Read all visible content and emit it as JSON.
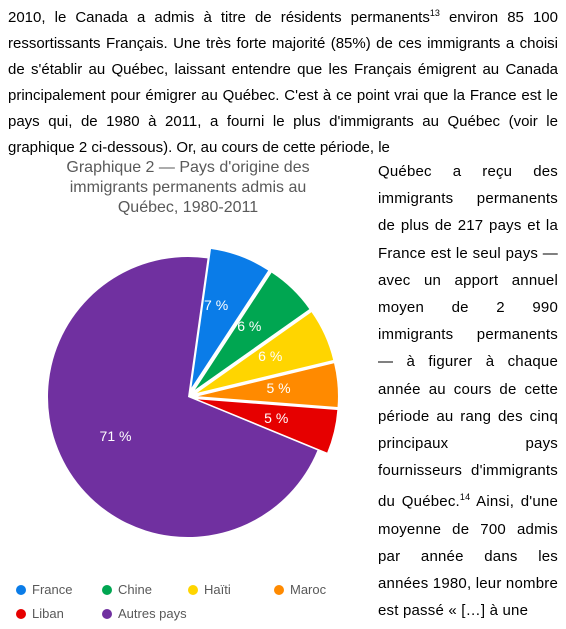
{
  "top_paragraph": {
    "l1": "2010, le Canada a admis à titre de résidents permanents",
    "fn": "13",
    "l1b": " environ 85 100",
    "l2": "ressortissants Français. Une très forte majorité (85%) de ces immigrants a",
    "l3": "choisi de s'établir au Québec, laissant entendre que les Français émigrent",
    "l4": "au Canada principalement pour émigrer au Québec. C'est à ce point vrai",
    "l5": "que la France est le pays qui, de 1980 à 2011, a fourni le plus d'immigrants",
    "l6": "au Québec (voir le graphique 2 ci-dessous). Or, au cours de cette période, le"
  },
  "right_col": {
    "text": "Québec a reçu des immigrants permanents de plus de 217 pays et la France est le seul pays — avec un apport annuel moyen de 2 990 immigrants permanents — à figurer à chaque année au cours de cette période au rang des cinq principaux pays fournisseurs d'immigrants du Québec.",
    "fn": "14",
    "text2": " Ainsi, d'une moyenne de 700 admis par année dans les années 1980, leur nombre est passé « […] à une"
  },
  "chart": {
    "type": "pie",
    "title_line1": "Graphique 2 — Pays d'origine des",
    "title_line2": "immigrants permanents admis au",
    "title_line3": "Québec, 1980-2011",
    "slices": [
      {
        "label": "France",
        "value": 7,
        "display": "7 %",
        "color": "#0a7ce8"
      },
      {
        "label": "Chine",
        "value": 6,
        "display": "6 %",
        "color": "#00a651"
      },
      {
        "label": "Haïti",
        "value": 6,
        "display": "6 %",
        "color": "#ffd500"
      },
      {
        "label": "Maroc",
        "value": 5,
        "display": "5 %",
        "color": "#ff8a00"
      },
      {
        "label": "Liban",
        "value": 5,
        "display": "5 %",
        "color": "#e60000"
      },
      {
        "label": "Autres pays",
        "value": 71,
        "display": "71 %",
        "color": "#7030a0"
      }
    ],
    "pull_slices": [
      0,
      1,
      2,
      3,
      4
    ],
    "pull_distance": 10,
    "start_angle_deg": -82,
    "radius": 140,
    "label_color": "#ffffff",
    "label_fontsize": 14,
    "title_color": "#595959",
    "title_fontsize": 16,
    "legend_fontsize": 13,
    "legend_color": "#595959",
    "background_color": "#ffffff"
  },
  "legend": {
    "row1": [
      "France",
      "Chine",
      "Haïti",
      "Maroc"
    ],
    "row2": [
      "Liban",
      "Autres pays"
    ]
  }
}
